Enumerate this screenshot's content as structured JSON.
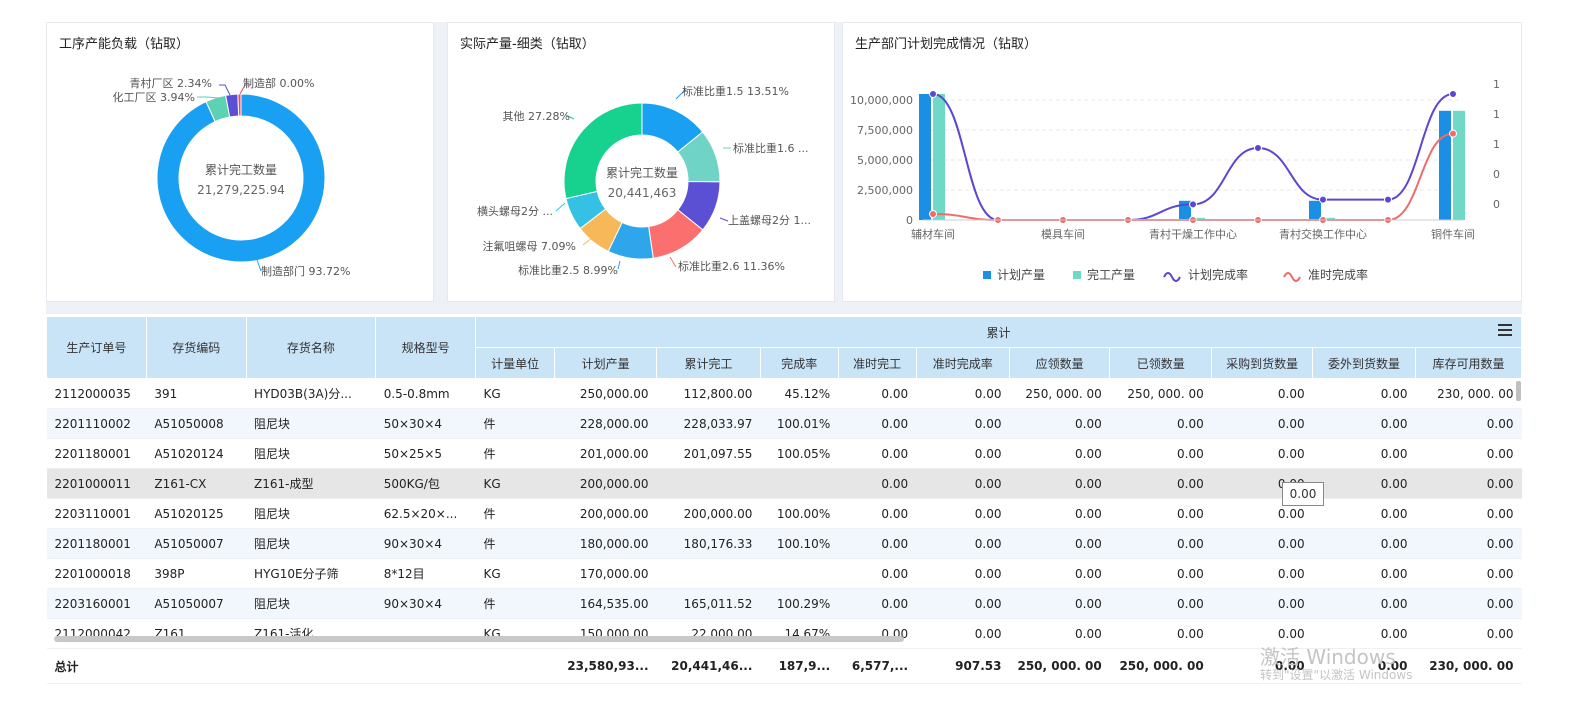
{
  "panels": {
    "capacity": {
      "title": "工序产能负载（钻取）",
      "center_label": "累计完工数量",
      "center_value": "21,279,225.94",
      "slices": [
        {
          "label": "制造部门",
          "pct": 93.72,
          "text": "制造部门 93.72%",
          "color": "#1aa0f2"
        },
        {
          "label": "化工厂区",
          "pct": 3.94,
          "text": "化工厂区 3.94%",
          "color": "#5cd2b2"
        },
        {
          "label": "青村厂区",
          "pct": 2.34,
          "text": "青村厂区 2.34%",
          "color": "#5b4fd4"
        },
        {
          "label": "制造部",
          "pct": 0.0,
          "text": "制造部 0.00%",
          "color": "#e94b6a"
        }
      ]
    },
    "output": {
      "title": "实际产量-细类（钻取）",
      "center_label": "累计完工数量",
      "center_value": "20,441,463",
      "slices": [
        {
          "label": "标准比重1.5",
          "pct": 13.51,
          "text": "标准比重1.5 13.51%",
          "color": "#1aa0f2"
        },
        {
          "label": "标准比重1.6",
          "pct": 10.5,
          "text": "标准比重1.6 ...",
          "color": "#6fd3c6"
        },
        {
          "label": "上盖螺母2分",
          "pct": 10.1,
          "text": "上盖螺母2分 1...",
          "color": "#5b4fd4"
        },
        {
          "label": "标准比重2.6",
          "pct": 11.36,
          "text": "标准比重2.6 11.36%",
          "color": "#fb6f6f"
        },
        {
          "label": "标准比重2.5",
          "pct": 8.99,
          "text": "标准比重2.5 8.99%",
          "color": "#2fa6ec"
        },
        {
          "label": "注氟咀螺母",
          "pct": 7.09,
          "text": "注氟咀螺母 7.09%",
          "color": "#f7b85a"
        },
        {
          "label": "横头螺母2分",
          "pct": 6.5,
          "text": "横头螺母2分 ...",
          "color": "#34c1e3"
        },
        {
          "label": "其他",
          "pct": 27.28,
          "text": "其他 27.28%",
          "color": "#17d28f"
        }
      ]
    },
    "dept": {
      "title": "生产部门计划完成情况（钻取）"
    }
  },
  "chart_data": {
    "type": "bar",
    "categories": [
      "辅材车间",
      "",
      "模具车间",
      "",
      "青村干燥工作中心",
      "",
      "青村交换工作中心",
      "",
      "铜件车间"
    ],
    "category_labels": [
      "辅材车间",
      "模具车间",
      "青村干燥工作中心",
      "青村交换工作中心",
      "铜件车间"
    ],
    "yticks_left": [
      "10,000,000",
      "7,500,000",
      "5,000,000",
      "2,500,000",
      "0"
    ],
    "yticks_right": [
      "1",
      "1",
      "1",
      "0",
      "0"
    ],
    "ylim": [
      0,
      11000000
    ],
    "series": [
      {
        "name": "计划产量",
        "type": "bar",
        "color": "#1a8fe3",
        "values": [
          10500000,
          0,
          0,
          0,
          1600000,
          0,
          1600000,
          0,
          9100000
        ]
      },
      {
        "name": "完工产量",
        "type": "bar",
        "color": "#6fd8c6",
        "values": [
          10500000,
          0,
          0,
          0,
          180000,
          0,
          180000,
          0,
          9100000
        ]
      },
      {
        "name": "计划完成率",
        "type": "line",
        "color": "#5a47d4",
        "values": [
          1.05,
          0.0,
          0.0,
          0.0,
          0.13,
          0.6,
          0.17,
          0.17,
          1.05
        ]
      },
      {
        "name": "准时完成率",
        "type": "line",
        "color": "#f06a6a",
        "values": [
          0.05,
          0.0,
          0.0,
          0.0,
          0.0,
          0.0,
          0.0,
          0.0,
          0.72
        ]
      }
    ],
    "legend": [
      "计划产量",
      "完工产量",
      "计划完成率",
      "准时完成率"
    ],
    "legend_position": "bottom"
  },
  "table": {
    "group_header": "累计",
    "fixed_headers": [
      "生产订单号",
      "存货编码",
      "存货名称",
      "规格型号"
    ],
    "sub_headers": [
      "计量单位",
      "计划产量",
      "累计完工",
      "完成率",
      "准时完工",
      "准时完成率",
      "应领数量",
      "已领数量",
      "采购到货数量",
      "委外到货数量",
      "库存可用数量"
    ],
    "rows": [
      [
        "2112000035",
        "391",
        "HYD03B(3A)分...",
        "0.5-0.8mm",
        "KG",
        "250,000.00",
        "112,800.00",
        "45.12%",
        "0.00",
        "0.00",
        "250, 000. 00",
        "250, 000. 00",
        "0.00",
        "0.00",
        "230, 000. 00"
      ],
      [
        "2201110002",
        "A51050008",
        "阻尼块",
        "50×30×4",
        "件",
        "228,000.00",
        "228,033.97",
        "100.01%",
        "0.00",
        "0.00",
        "0.00",
        "0.00",
        "0.00",
        "0.00",
        "0.00"
      ],
      [
        "2201180001",
        "A51020124",
        "阻尼块",
        "50×25×5",
        "件",
        "201,000.00",
        "201,097.55",
        "100.05%",
        "0.00",
        "0.00",
        "0.00",
        "0.00",
        "0.00",
        "0.00",
        "0.00"
      ],
      [
        "2201000011",
        "Z161-CX",
        "Z161-成型",
        "500KG/包",
        "KG",
        "200,000.00",
        "",
        "",
        "0.00",
        "0.00",
        "0.00",
        "0.00",
        "0.00",
        "0.00",
        "0.00"
      ],
      [
        "2203110001",
        "A51020125",
        "阻尼块",
        "62.5×20×...",
        "件",
        "200,000.00",
        "200,000.00",
        "100.00%",
        "0.00",
        "0.00",
        "0.00",
        "0.00",
        "0.00",
        "0.00",
        "0.00"
      ],
      [
        "2201180001",
        "A51050007",
        "阻尼块",
        "90×30×4",
        "件",
        "180,000.00",
        "180,176.33",
        "100.10%",
        "0.00",
        "0.00",
        "0.00",
        "0.00",
        "0.00",
        "0.00",
        "0.00"
      ],
      [
        "2201000018",
        "398P",
        "HYG10E分子筛",
        "8*12目",
        "KG",
        "170,000.00",
        "",
        "",
        "0.00",
        "0.00",
        "0.00",
        "0.00",
        "0.00",
        "0.00",
        "0.00"
      ],
      [
        "2203160001",
        "A51050007",
        "阻尼块",
        "90×30×4",
        "件",
        "164,535.00",
        "165,011.52",
        "100.29%",
        "0.00",
        "0.00",
        "0.00",
        "0.00",
        "0.00",
        "0.00",
        "0.00"
      ],
      [
        "2112000042",
        "Z161",
        "Z161-活化",
        "",
        "KG",
        "150,000.00",
        "22,000.00",
        "14.67%",
        "0.00",
        "0.00",
        "0.00",
        "0.00",
        "0.00",
        "0.00",
        "0.00"
      ]
    ],
    "total": [
      "总计",
      "",
      "",
      "",
      "",
      "23,580,93...",
      "20,441,46...",
      "187,9...",
      "6,577,...",
      "907.53",
      "250, 000. 00",
      "250, 000. 00",
      "0.00",
      "0.00",
      "230, 000. 00"
    ],
    "tooltip": "0.00"
  },
  "watermark": {
    "line1": "激活 Windows",
    "line2": "转到\"设置\"以激活 Windows"
  }
}
